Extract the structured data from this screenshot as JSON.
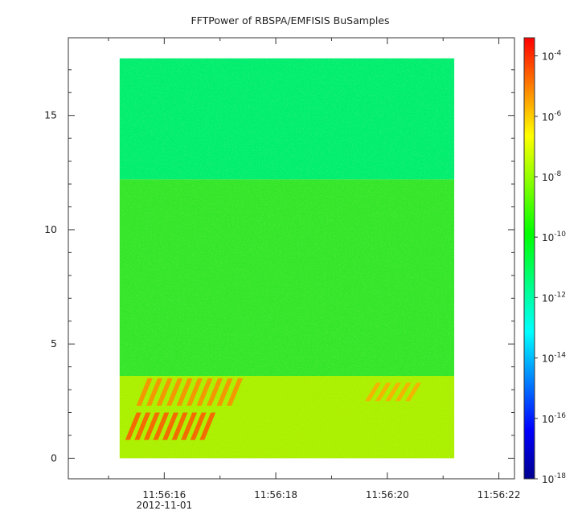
{
  "chart_data": {
    "type": "heatmap",
    "title": "FFTPower of RBSPA/EMFISIS  BuSamples",
    "xlabel": "",
    "ylabel": "",
    "x_ticks": [
      {
        "label": "11:56:16",
        "sublabel": "2012-11-01",
        "t": 16
      },
      {
        "label": "11:56:18",
        "sublabel": "",
        "t": 18
      },
      {
        "label": "11:56:20",
        "sublabel": "",
        "t": 20
      },
      {
        "label": "11:56:22",
        "sublabel": "",
        "t": 22
      }
    ],
    "x_minor_ticks": [
      15,
      17,
      19,
      21
    ],
    "xlim_seconds": [
      14.28,
      22.28
    ],
    "data_x_range_seconds": [
      15.2,
      21.2
    ],
    "y_ticks": [
      0,
      5,
      10,
      15
    ],
    "ylim": [
      -0.9,
      18.4
    ],
    "data_y_range": [
      0,
      17.5
    ],
    "colorbar": {
      "scale": "log",
      "range_exp": [
        -18,
        -3.4
      ],
      "tick_base": "10",
      "tick_exponents": [
        "-4",
        "-6",
        "-8",
        "-10",
        "-12",
        "-14",
        "-16",
        "-18"
      ],
      "tick_values_exp": [
        -4,
        -6,
        -8,
        -10,
        -12,
        -14,
        -16,
        -18
      ],
      "colormap": [
        "#00008f",
        "#0000ff",
        "#0080ff",
        "#00ffff",
        "#00ff80",
        "#00ff00",
        "#80ff00",
        "#ffff00",
        "#ff8000",
        "#ff0000"
      ]
    },
    "bands": [
      {
        "y_from": 12.2,
        "y_to": 17.5,
        "level_exp": -12.5,
        "color": "#00ee70"
      },
      {
        "y_from": 3.6,
        "y_to": 12.2,
        "level_exp": -10.5,
        "color": "#33e62a"
      },
      {
        "y_from": 0.0,
        "y_to": 3.6,
        "level_exp": -9,
        "color": "#aaf000"
      }
    ],
    "features": [
      {
        "t_from": 15.5,
        "t_to": 17.3,
        "y_from": 2.3,
        "y_to": 3.5,
        "color": "#ff8800"
      },
      {
        "t_from": 15.3,
        "t_to": 16.8,
        "y_from": 0.8,
        "y_to": 2.0,
        "color": "#ff5500"
      },
      {
        "t_from": 19.6,
        "t_to": 20.5,
        "y_from": 2.5,
        "y_to": 3.3,
        "color": "#ffaa00"
      }
    ]
  }
}
